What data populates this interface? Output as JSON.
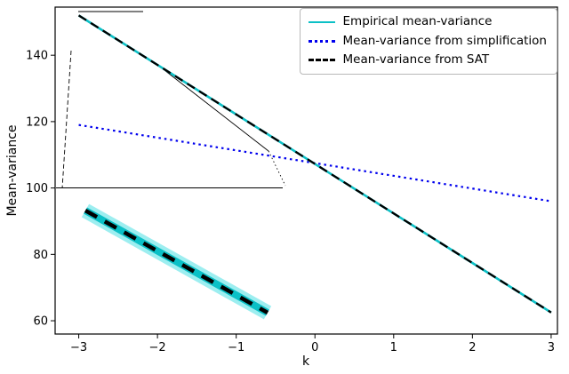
{
  "chart_data": {
    "type": "line",
    "title": "",
    "xlabel": "k",
    "ylabel": "Mean-variance",
    "x_range": [
      -3.3,
      3.08
    ],
    "y_range": [
      56,
      154.5
    ],
    "x_ticks": [
      -3,
      -2,
      -1,
      0,
      1,
      2,
      3
    ],
    "y_ticks": [
      60,
      80,
      100,
      120,
      140
    ],
    "grid": false,
    "legend_position": "upper right",
    "series": [
      {
        "name": "Empirical mean-variance",
        "color": "#0bc0c6",
        "style": "solid",
        "x": [
          -3,
          3
        ],
        "y": [
          152,
          62.5
        ]
      },
      {
        "name": "Mean-variance from simplification",
        "color": "#0000ee",
        "style": "dotted",
        "x": [
          -3,
          3
        ],
        "y": [
          119,
          96
        ]
      },
      {
        "name": "Mean-variance from SAT",
        "color": "#000000",
        "style": "dashed",
        "x": [
          -3,
          3
        ],
        "y": [
          152,
          62.5
        ]
      }
    ],
    "inset": {
      "x_zoom": [
        -2.95,
        -2.25
      ],
      "y_zoom": [
        140.9,
        151.5
      ],
      "band_color": "#9deef0",
      "core_color": "#0bc0c6",
      "dash_color": "#000000"
    }
  }
}
